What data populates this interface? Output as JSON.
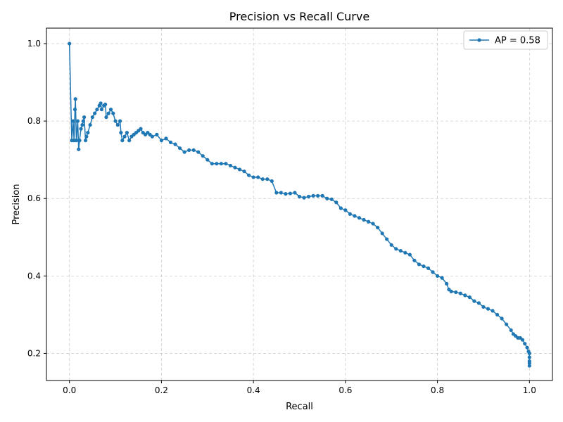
{
  "chart_data": {
    "type": "line",
    "title": "Precision vs Recall Curve",
    "xlabel": "Recall",
    "ylabel": "Precision",
    "xlim": [
      -0.05,
      1.05
    ],
    "ylim": [
      0.13,
      1.04
    ],
    "xticks": [
      0.0,
      0.2,
      0.4,
      0.6,
      0.8,
      1.0
    ],
    "xtick_labels": [
      "0.0",
      "0.2",
      "0.4",
      "0.6",
      "0.8",
      "1.0"
    ],
    "yticks": [
      0.2,
      0.4,
      0.6,
      0.8,
      1.0
    ],
    "ytick_labels": [
      "0.2",
      "0.4",
      "0.6",
      "0.8",
      "1.0"
    ],
    "grid": true,
    "legend_position": "top-right",
    "series": [
      {
        "name": "AP = 0.58",
        "color": "#1f77b4",
        "marker": "circle",
        "x": [
          0.0,
          0.005,
          0.008,
          0.01,
          0.012,
          0.013,
          0.015,
          0.018,
          0.02,
          0.022,
          0.025,
          0.028,
          0.03,
          0.032,
          0.035,
          0.037,
          0.04,
          0.045,
          0.05,
          0.055,
          0.06,
          0.065,
          0.068,
          0.07,
          0.075,
          0.078,
          0.08,
          0.085,
          0.09,
          0.095,
          0.1,
          0.105,
          0.11,
          0.112,
          0.115,
          0.12,
          0.125,
          0.13,
          0.135,
          0.14,
          0.145,
          0.15,
          0.155,
          0.16,
          0.165,
          0.17,
          0.175,
          0.18,
          0.19,
          0.2,
          0.21,
          0.22,
          0.23,
          0.24,
          0.25,
          0.26,
          0.27,
          0.28,
          0.29,
          0.3,
          0.31,
          0.32,
          0.33,
          0.34,
          0.35,
          0.36,
          0.37,
          0.38,
          0.39,
          0.4,
          0.41,
          0.42,
          0.43,
          0.44,
          0.45,
          0.46,
          0.47,
          0.48,
          0.49,
          0.5,
          0.51,
          0.52,
          0.53,
          0.54,
          0.55,
          0.56,
          0.57,
          0.58,
          0.59,
          0.6,
          0.61,
          0.62,
          0.63,
          0.64,
          0.65,
          0.66,
          0.67,
          0.68,
          0.69,
          0.7,
          0.71,
          0.72,
          0.73,
          0.74,
          0.75,
          0.76,
          0.77,
          0.78,
          0.79,
          0.8,
          0.81,
          0.82,
          0.825,
          0.83,
          0.84,
          0.85,
          0.86,
          0.87,
          0.88,
          0.89,
          0.9,
          0.91,
          0.92,
          0.93,
          0.94,
          0.95,
          0.96,
          0.965,
          0.97,
          0.975,
          0.98,
          0.985,
          0.99,
          0.995,
          0.998,
          1.0,
          1.0,
          1.0,
          1.0,
          1.0
        ],
        "y": [
          1.0,
          0.75,
          0.8,
          0.75,
          0.83,
          0.857,
          0.75,
          0.8,
          0.727,
          0.75,
          0.78,
          0.79,
          0.8,
          0.81,
          0.75,
          0.76,
          0.77,
          0.79,
          0.81,
          0.82,
          0.83,
          0.84,
          0.846,
          0.83,
          0.84,
          0.843,
          0.81,
          0.82,
          0.83,
          0.82,
          0.8,
          0.79,
          0.8,
          0.77,
          0.75,
          0.76,
          0.77,
          0.75,
          0.76,
          0.765,
          0.77,
          0.775,
          0.78,
          0.77,
          0.765,
          0.77,
          0.765,
          0.76,
          0.765,
          0.75,
          0.755,
          0.745,
          0.74,
          0.73,
          0.72,
          0.725,
          0.725,
          0.72,
          0.71,
          0.7,
          0.69,
          0.69,
          0.69,
          0.69,
          0.685,
          0.68,
          0.675,
          0.67,
          0.66,
          0.655,
          0.655,
          0.65,
          0.65,
          0.645,
          0.615,
          0.615,
          0.612,
          0.613,
          0.615,
          0.605,
          0.602,
          0.605,
          0.607,
          0.607,
          0.607,
          0.6,
          0.598,
          0.59,
          0.575,
          0.57,
          0.56,
          0.555,
          0.55,
          0.545,
          0.54,
          0.535,
          0.525,
          0.51,
          0.495,
          0.48,
          0.47,
          0.465,
          0.46,
          0.455,
          0.44,
          0.43,
          0.425,
          0.42,
          0.41,
          0.4,
          0.395,
          0.38,
          0.365,
          0.36,
          0.358,
          0.355,
          0.35,
          0.345,
          0.335,
          0.33,
          0.32,
          0.315,
          0.31,
          0.3,
          0.29,
          0.275,
          0.26,
          0.25,
          0.245,
          0.24,
          0.24,
          0.235,
          0.225,
          0.215,
          0.205,
          0.2,
          0.19,
          0.18,
          0.175,
          0.168
        ]
      }
    ]
  }
}
